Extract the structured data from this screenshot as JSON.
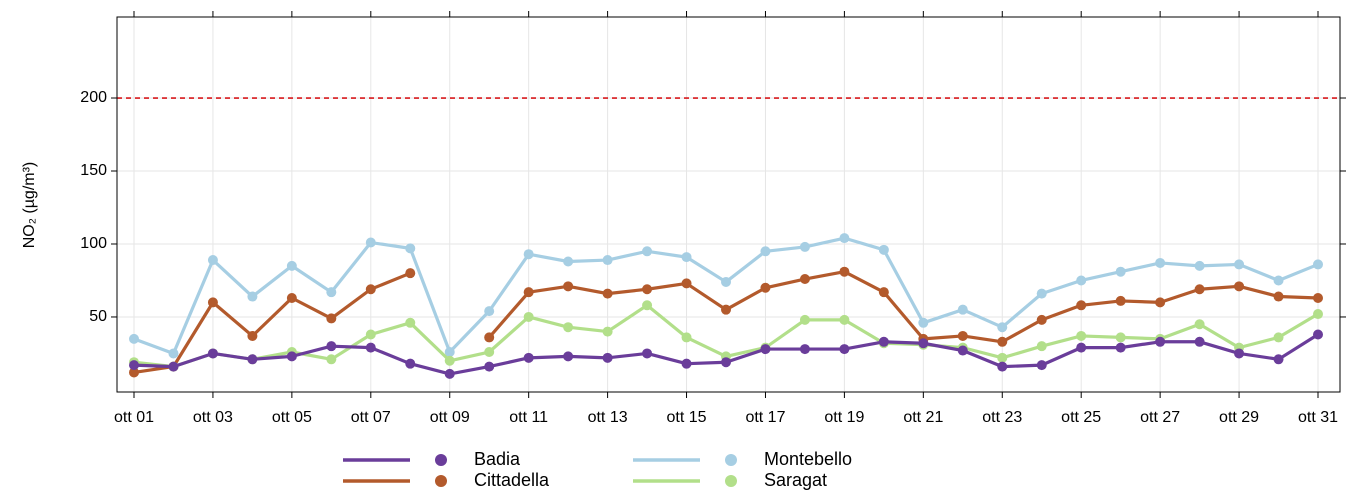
{
  "chart_data": {
    "type": "line",
    "ylabel": "NO₂ (µg/m³)",
    "categories": [
      "ott 01",
      null,
      "ott 03",
      null,
      "ott 05",
      null,
      "ott 07",
      null,
      "ott 09",
      null,
      "ott 11",
      null,
      "ott 13",
      null,
      "ott 15",
      null,
      "ott 17",
      null,
      "ott 19",
      null,
      "ott 21",
      null,
      "ott 23",
      null,
      "ott 25",
      null,
      "ott 27",
      null,
      "ott 29",
      null,
      "ott 31"
    ],
    "ylim": [
      -1.4,
      255.5
    ],
    "yticks": [
      50,
      100,
      150,
      200
    ],
    "grid": true,
    "hline": 200,
    "hline_color": "#d7191c",
    "series": [
      {
        "name": "Montebello",
        "color": "#a6cee3",
        "values": [
          35,
          25,
          89,
          64,
          85,
          67,
          101,
          97,
          26,
          54,
          93,
          88,
          89,
          95,
          91,
          74,
          95,
          98,
          104,
          96,
          46,
          55,
          43,
          66,
          75,
          81,
          87,
          85,
          86,
          75,
          86
        ]
      },
      {
        "name": "Cittadella",
        "color": "#b35a2c",
        "values": [
          12,
          16,
          60,
          37,
          63,
          49,
          69,
          80,
          null,
          36,
          67,
          71,
          66,
          69,
          73,
          55,
          70,
          76,
          81,
          67,
          35,
          37,
          33,
          48,
          58,
          61,
          60,
          69,
          71,
          64,
          63
        ]
      },
      {
        "name": "Saragat",
        "color": "#b2df8a",
        "values": [
          19,
          16,
          25,
          21,
          26,
          21,
          38,
          46,
          20,
          26,
          50,
          43,
          40,
          58,
          36,
          23,
          29,
          48,
          48,
          32,
          31,
          29,
          22,
          30,
          37,
          36,
          35,
          45,
          29,
          36,
          52
        ]
      },
      {
        "name": "Badia",
        "color": "#6a3d9a",
        "values": [
          17,
          16,
          25,
          21,
          23,
          30,
          29,
          18,
          11,
          16,
          22,
          23,
          22,
          25,
          18,
          19,
          28,
          28,
          28,
          33,
          32,
          27,
          16,
          17,
          29,
          29,
          33,
          33,
          25,
          21,
          38
        ]
      }
    ]
  }
}
